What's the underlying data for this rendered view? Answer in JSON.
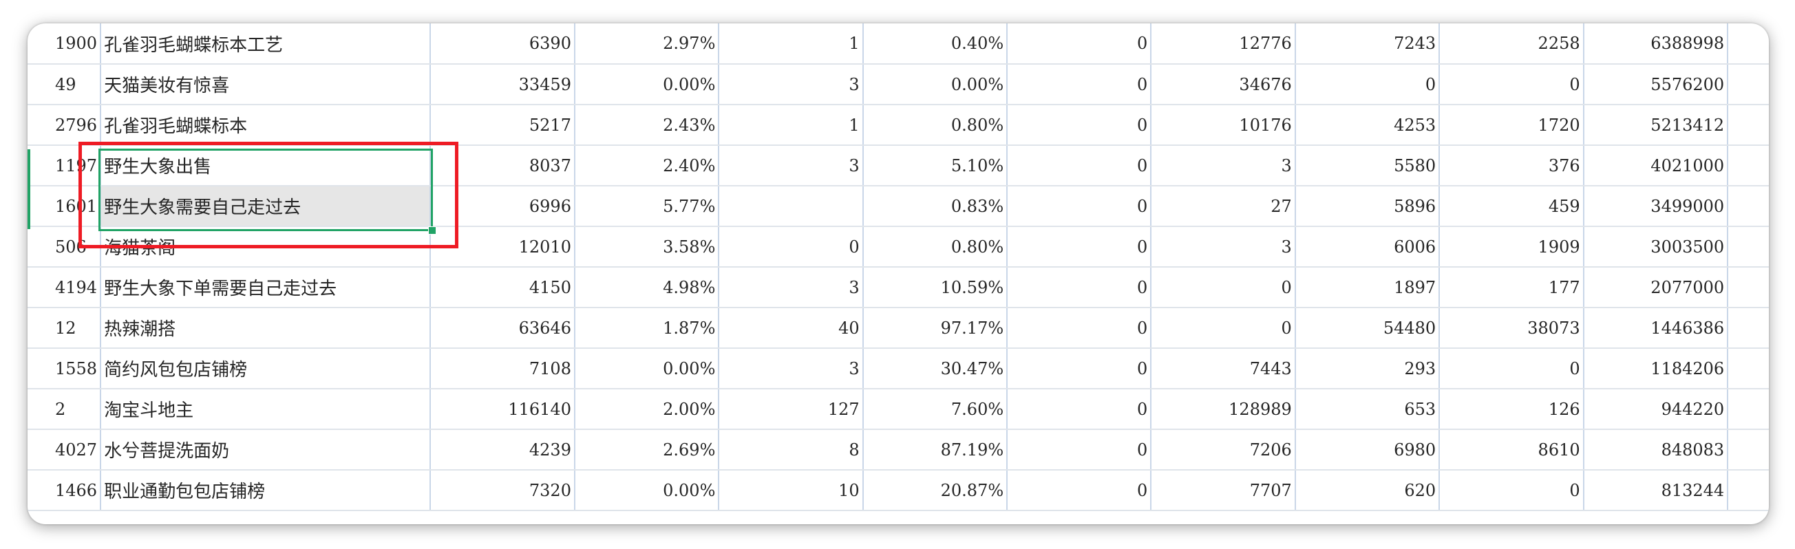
{
  "sheet": {
    "rows": [
      {
        "id": "1900",
        "name": "孔雀羽毛蝴蝶标本工艺",
        "c1": "6390",
        "c2": "2.97%",
        "c3": "1",
        "c4": "0.40%",
        "c5": "0",
        "c6": "12776",
        "c7": "7243",
        "c8": "2258",
        "c9": "6388998"
      },
      {
        "id": "49",
        "name": "天猫美妆有惊喜",
        "c1": "33459",
        "c2": "0.00%",
        "c3": "3",
        "c4": "0.00%",
        "c5": "0",
        "c6": "34676",
        "c7": "0",
        "c8": "0",
        "c9": "5576200"
      },
      {
        "id": "2796",
        "name": "孔雀羽毛蝴蝶标本",
        "c1": "5217",
        "c2": "2.43%",
        "c3": "1",
        "c4": "0.80%",
        "c5": "0",
        "c6": "10176",
        "c7": "4253",
        "c8": "1720",
        "c9": "5213412"
      },
      {
        "id": "1197",
        "name": "野生大象出售",
        "c1": "8037",
        "c2": "2.40%",
        "c3": "3",
        "c4": "5.10%",
        "c5": "0",
        "c6": "3",
        "c7": "5580",
        "c8": "376",
        "c9": "4021000"
      },
      {
        "id": "1601",
        "name": "野生大象需要自己走过去",
        "c1": "6996",
        "c2": "5.77%",
        "c3": "",
        "c4": "0.83%",
        "c5": "0",
        "c6": "27",
        "c7": "5896",
        "c8": "459",
        "c9": "3499000"
      },
      {
        "id": "506",
        "name": "海猫茶阁",
        "c1": "12010",
        "c2": "3.58%",
        "c3": "0",
        "c4": "0.80%",
        "c5": "0",
        "c6": "3",
        "c7": "6006",
        "c8": "1909",
        "c9": "3003500"
      },
      {
        "id": "4194",
        "name": "野生大象下单需要自己走过去",
        "c1": "4150",
        "c2": "4.98%",
        "c3": "3",
        "c4": "10.59%",
        "c5": "0",
        "c6": "0",
        "c7": "1897",
        "c8": "177",
        "c9": "2077000"
      },
      {
        "id": "12",
        "name": "热辣潮搭",
        "c1": "63646",
        "c2": "1.87%",
        "c3": "40",
        "c4": "97.17%",
        "c5": "0",
        "c6": "0",
        "c7": "54480",
        "c8": "38073",
        "c9": "1446386"
      },
      {
        "id": "1558",
        "name": "简约风包包店铺榜",
        "c1": "7108",
        "c2": "0.00%",
        "c3": "3",
        "c4": "30.47%",
        "c5": "0",
        "c6": "7443",
        "c7": "293",
        "c8": "0",
        "c9": "1184206"
      },
      {
        "id": "2",
        "name": "淘宝斗地主",
        "c1": "116140",
        "c2": "2.00%",
        "c3": "127",
        "c4": "7.60%",
        "c5": "0",
        "c6": "128989",
        "c7": "653",
        "c8": "126",
        "c9": "944220"
      },
      {
        "id": "4027",
        "name": "水兮菩提洗面奶",
        "c1": "4239",
        "c2": "2.69%",
        "c3": "8",
        "c4": "87.19%",
        "c5": "0",
        "c6": "7206",
        "c7": "6980",
        "c8": "8610",
        "c9": "848083"
      },
      {
        "id": "1466",
        "name": "职业通勤包包店铺榜",
        "c1": "7320",
        "c2": "0.00%",
        "c3": "10",
        "c4": "20.87%",
        "c5": "0",
        "c6": "7707",
        "c7": "620",
        "c8": "0",
        "c9": "813244"
      }
    ]
  },
  "colors": {
    "selection": "#21a366",
    "annotation": "#ee1b24",
    "active_cell_fill": "#e6e6e6",
    "grid_vertical": "#c9d6e8",
    "grid_horizontal": "#dfe4ea"
  }
}
